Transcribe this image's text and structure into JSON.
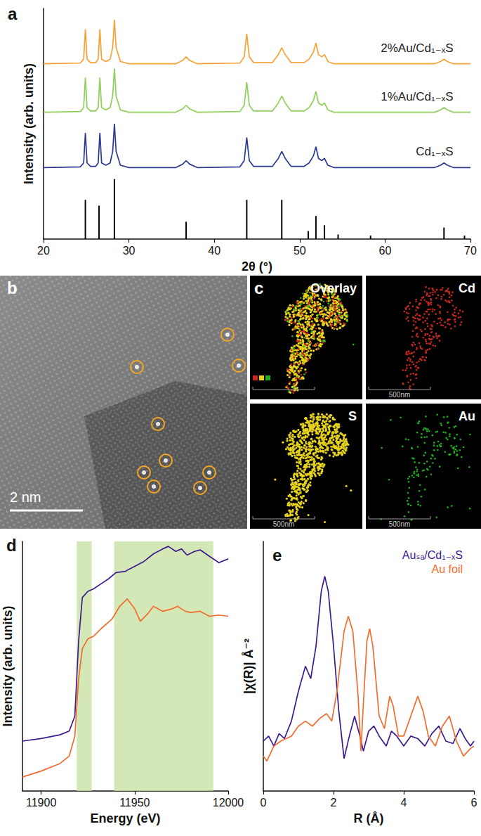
{
  "chart_data": [
    {
      "type": "line",
      "title": "a",
      "x_label": "2θ (°)",
      "y_label": "Intensity (arb. units)",
      "xlim": [
        20,
        70
      ],
      "xticks": [
        20,
        30,
        40,
        50,
        60,
        70
      ],
      "ylim": [
        0,
        100
      ],
      "tick_labels": "x",
      "grid": false,
      "series": [
        {
          "name": "2%Au/Cd₁₋ₓS",
          "color": "#f7a234",
          "x": [
            20,
            24.3,
            24.7,
            24.9,
            25.1,
            25.5,
            26.1,
            26.4,
            26.6,
            26.8,
            27.3,
            27.8,
            28.1,
            28.3,
            28.5,
            29,
            30,
            35.5,
            36.3,
            36.7,
            37.1,
            38,
            43,
            43.5,
            43.8,
            44.1,
            44.6,
            46.8,
            47.5,
            47.9,
            48.3,
            49,
            50.5,
            51.1,
            51.6,
            51.9,
            52.2,
            52.6,
            52.9,
            53.3,
            54,
            65.8,
            66.5,
            66.9,
            67.3,
            68,
            70
          ],
          "values": [
            76,
            76.3,
            78,
            91,
            78,
            76.5,
            76.5,
            78,
            91,
            78,
            77,
            78,
            83,
            95,
            83,
            77,
            76,
            76,
            77.5,
            79,
            77.5,
            76,
            76.3,
            79,
            89,
            79,
            76.5,
            76.5,
            80,
            83,
            80,
            76.5,
            76.5,
            78,
            81,
            85,
            80,
            79,
            80,
            77,
            76,
            76,
            77,
            78,
            77,
            76,
            76
          ]
        },
        {
          "name": "1%Au/Cd₁₋ₓS",
          "color": "#8fcf5a",
          "x": [
            20,
            24.3,
            24.7,
            24.9,
            25.1,
            25.5,
            26.1,
            26.4,
            26.6,
            26.8,
            27.3,
            27.8,
            28.1,
            28.3,
            28.5,
            29,
            30,
            35.5,
            36.3,
            36.7,
            37.1,
            38,
            43,
            43.5,
            43.8,
            44.1,
            44.6,
            46.8,
            47.5,
            47.9,
            48.3,
            49,
            50.5,
            51.1,
            51.6,
            51.9,
            52.2,
            52.6,
            52.9,
            53.3,
            54,
            65.8,
            66.5,
            66.9,
            67.3,
            68,
            70
          ],
          "values": [
            55,
            55.3,
            57,
            70,
            57,
            55.5,
            55.5,
            57,
            70,
            57,
            56,
            57,
            62,
            74,
            62,
            56,
            55,
            55,
            56.5,
            58,
            56.5,
            55,
            55.3,
            58,
            68,
            58,
            55.5,
            55.5,
            59,
            62,
            59,
            55.5,
            55.5,
            57,
            60,
            64,
            59,
            58,
            59,
            56,
            55,
            55,
            56,
            57,
            56,
            55,
            55
          ]
        },
        {
          "name": "Cd₁₋ₓS",
          "color": "#2b3990",
          "x": [
            20,
            24.3,
            24.7,
            24.9,
            25.1,
            25.5,
            26.1,
            26.4,
            26.6,
            26.8,
            27.3,
            27.8,
            28.1,
            28.3,
            28.5,
            29,
            30,
            35.5,
            36.3,
            36.7,
            37.1,
            38,
            43,
            43.5,
            43.8,
            44.1,
            44.6,
            46.8,
            47.5,
            47.9,
            48.3,
            49,
            50.5,
            51.1,
            51.6,
            51.9,
            52.2,
            52.6,
            52.9,
            53.3,
            54,
            65.8,
            66.5,
            66.9,
            67.3,
            68,
            70
          ],
          "values": [
            31,
            31.3,
            33,
            46,
            33,
            31.5,
            31.5,
            33,
            46,
            33,
            32,
            33,
            38,
            50,
            38,
            32,
            31,
            31,
            32.5,
            34,
            32.5,
            31,
            31.3,
            34,
            44,
            34,
            31.5,
            31.5,
            35,
            38,
            35,
            31.5,
            31.5,
            33,
            36,
            40,
            35,
            34,
            35,
            32,
            31,
            31,
            32,
            33,
            32,
            31,
            31
          ]
        },
        {
          "type": "bar",
          "color": "#000000",
          "x": [
            24.9,
            26.5,
            28.3,
            36.7,
            43.8,
            47.9,
            51.0,
            51.9,
            52.9,
            54.5,
            58.3,
            66.9,
            69.3
          ],
          "values": [
            17,
            14.5,
            26,
            7.5,
            17,
            17,
            3.5,
            10,
            6,
            2,
            1.5,
            5,
            1.5
          ]
        }
      ]
    },
    {
      "type": "line",
      "title": "d",
      "x_label": "Energy (eV)",
      "y_label": "Intensity (arb. units)",
      "xlim": [
        11890,
        12000
      ],
      "xticks": [
        11900,
        11950,
        12000
      ],
      "ylim": [
        0,
        100
      ],
      "tick_labels": "x",
      "grid": false,
      "bands": [
        [
          11919,
          11927
        ],
        [
          11939,
          11992
        ]
      ],
      "series": [
        {
          "color": "#3d1a8e",
          "x": [
            11890,
            11900,
            11910,
            11915,
            11918,
            11920,
            11922,
            11925,
            11928,
            11932,
            11936,
            11940,
            11945,
            11950,
            11955,
            11960,
            11965,
            11968,
            11972,
            11975,
            11978,
            11982,
            11985,
            11990,
            11995,
            12000
          ],
          "values": [
            20,
            21,
            22.5,
            24,
            30,
            60,
            77.5,
            80,
            81,
            83,
            85,
            87.5,
            88,
            90,
            92,
            95,
            97,
            98,
            96,
            97,
            94.5,
            96,
            96.6,
            94,
            91.5,
            93
          ]
        },
        {
          "color": "#f26c2e",
          "x": [
            11890,
            11900,
            11910,
            11915,
            11918,
            11920,
            11922,
            11925,
            11928,
            11932,
            11938,
            11942,
            11946,
            11950,
            11953,
            11957,
            11960,
            11965,
            11970,
            11973,
            11977,
            11980,
            11985,
            11990,
            11995,
            12000
          ],
          "values": [
            5.6,
            8,
            11,
            14,
            22,
            45,
            57,
            61,
            62,
            65,
            69,
            74,
            77,
            73,
            68,
            71,
            74,
            72,
            73,
            74,
            72,
            71.5,
            72,
            70,
            70.5,
            70
          ]
        }
      ]
    },
    {
      "type": "line",
      "title": "e",
      "x_label": "R (Å)",
      "y_label": "|χ(R)| Å⁻²",
      "xlim": [
        0,
        6
      ],
      "xticks": [
        0,
        2,
        4,
        6
      ],
      "ylim": [
        0,
        100
      ],
      "tick_labels": "x",
      "grid": false,
      "legend": "upper right",
      "series": [
        {
          "name": "Auₛₐ/Cd₁₋ₓS",
          "color": "#3d1a8e",
          "x": [
            0,
            0.15,
            0.3,
            0.45,
            0.6,
            0.8,
            1.0,
            1.2,
            1.35,
            1.5,
            1.65,
            1.75,
            1.85,
            2.0,
            2.15,
            2.3,
            2.45,
            2.6,
            2.75,
            2.85,
            3.0,
            3.15,
            3.3,
            3.5,
            3.65,
            3.8,
            4.0,
            4.2,
            4.4,
            4.6,
            4.8,
            5.0,
            5.2,
            5.4,
            5.6,
            5.75,
            5.9,
            6
          ],
          "values": [
            20,
            22,
            18,
            23,
            21,
            28,
            40,
            50,
            45,
            58,
            80,
            86,
            80,
            58,
            32,
            13,
            22,
            30,
            22,
            16,
            24,
            26,
            22,
            18,
            24,
            22,
            18,
            22,
            21,
            18,
            23,
            26,
            20,
            19,
            25,
            21,
            18,
            20
          ]
        },
        {
          "name": "Au foil",
          "color": "#f26c2e",
          "x": [
            0,
            0.1,
            0.3,
            0.5,
            0.8,
            1.0,
            1.2,
            1.4,
            1.6,
            1.8,
            1.95,
            2.1,
            2.3,
            2.42,
            2.55,
            2.7,
            2.78,
            2.85,
            2.95,
            3.03,
            3.12,
            3.3,
            3.45,
            3.6,
            3.7,
            3.85,
            4.0,
            4.2,
            4.4,
            4.55,
            4.7,
            4.9,
            5.1,
            5.3,
            5.5,
            5.7,
            5.9,
            6
          ],
          "values": [
            14,
            12,
            18,
            20,
            22,
            26,
            28,
            26,
            29,
            31,
            28,
            40,
            64,
            70,
            64,
            38,
            16,
            35,
            60,
            65,
            58,
            30,
            25,
            38,
            34,
            22,
            22,
            30,
            38,
            32,
            22,
            18,
            26,
            30,
            20,
            14,
            17,
            18
          ]
        }
      ]
    }
  ],
  "images": [
    {
      "title": "b",
      "scale_bar": "2 nm"
    },
    {
      "title": "c",
      "maps": [
        {
          "name": "Overlay"
        },
        {
          "name": "Cd",
          "color": "#c8281e",
          "scale_bar": "500nm"
        },
        {
          "name": "S",
          "color": "#e6d21c",
          "scale_bar": "500nm"
        },
        {
          "name": "Au",
          "color": "#1fae1f",
          "scale_bar": "500nm"
        }
      ]
    }
  ]
}
